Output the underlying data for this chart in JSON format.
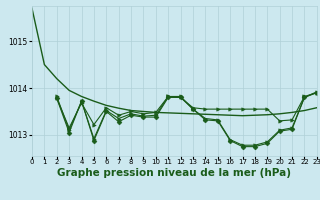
{
  "background_color": "#cce8ef",
  "grid_color": "#b0d0d8",
  "line_color": "#1a5c1a",
  "marker_color": "#1a5c1a",
  "title": "Graphe pression niveau de la mer (hPa)",
  "title_fontsize": 7.5,
  "xlim": [
    0,
    23
  ],
  "ylim": [
    1012.55,
    1015.75
  ],
  "yticks": [
    1013,
    1014,
    1015
  ],
  "xticks": [
    0,
    1,
    2,
    3,
    4,
    5,
    6,
    7,
    8,
    9,
    10,
    11,
    12,
    13,
    14,
    15,
    16,
    17,
    18,
    19,
    20,
    21,
    22,
    23
  ],
  "series": [
    {
      "x": [
        0,
        1,
        2,
        3,
        4,
        5,
        6,
        7,
        8,
        9,
        10,
        11,
        12,
        13,
        14,
        15,
        16,
        17,
        18,
        19,
        20,
        21,
        22,
        23
      ],
      "y": [
        1015.7,
        1014.5,
        1014.2,
        1013.95,
        1013.82,
        1013.72,
        1013.63,
        1013.57,
        1013.52,
        1013.5,
        1013.48,
        1013.47,
        1013.46,
        1013.45,
        1013.44,
        1013.43,
        1013.42,
        1013.41,
        1013.42,
        1013.43,
        1013.45,
        1013.48,
        1013.52,
        1013.58
      ],
      "marker": null,
      "lw": 1.0
    },
    {
      "x": [
        2,
        3,
        4,
        5,
        6,
        7,
        8,
        9,
        10,
        11,
        12,
        13,
        14,
        15,
        16,
        17,
        18,
        19,
        20,
        21,
        22,
        23
      ],
      "y": [
        1013.78,
        1013.05,
        1013.72,
        1012.88,
        1013.5,
        1013.28,
        1013.42,
        1013.38,
        1013.38,
        1013.8,
        1013.8,
        1013.55,
        1013.32,
        1013.3,
        1012.88,
        1012.75,
        1012.75,
        1012.82,
        1013.08,
        1013.12,
        1013.8,
        1013.9
      ],
      "marker": "D",
      "lw": 0.8
    },
    {
      "x": [
        2,
        3,
        4,
        5,
        6,
        7,
        8,
        9,
        10,
        11,
        12,
        13,
        14,
        15,
        16,
        17,
        18,
        19,
        20,
        21,
        22,
        23
      ],
      "y": [
        1013.78,
        1013.15,
        1013.68,
        1013.22,
        1013.58,
        1013.42,
        1013.5,
        1013.45,
        1013.48,
        1013.82,
        1013.8,
        1013.58,
        1013.55,
        1013.55,
        1013.55,
        1013.55,
        1013.55,
        1013.55,
        1013.3,
        1013.32,
        1013.82,
        1013.9
      ],
      "marker": ">",
      "lw": 0.8
    },
    {
      "x": [
        2,
        3,
        4,
        5,
        6,
        7,
        8,
        9,
        10,
        11,
        12,
        13,
        14,
        15,
        16,
        17,
        18,
        19,
        20,
        21,
        22,
        23
      ],
      "y": [
        1013.82,
        1013.1,
        1013.72,
        1012.92,
        1013.52,
        1013.35,
        1013.45,
        1013.4,
        1013.42,
        1013.82,
        1013.82,
        1013.55,
        1013.35,
        1013.32,
        1012.9,
        1012.78,
        1012.78,
        1012.85,
        1013.1,
        1013.15,
        1013.8,
        1013.92
      ],
      "marker": ">",
      "lw": 0.8
    }
  ]
}
